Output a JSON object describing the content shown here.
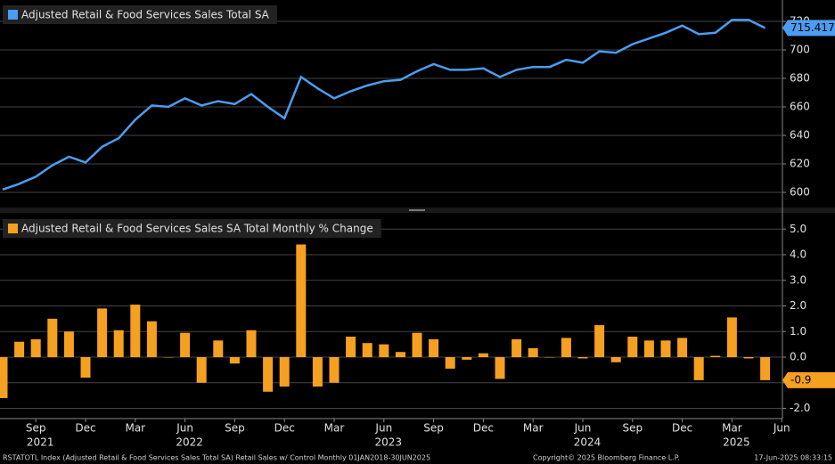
{
  "chart_data": [
    {
      "type": "line",
      "title": "Adjusted Retail & Food Services Sales Total SA",
      "color": "#4a9df0",
      "categories": [
        "2021-07",
        "2021-08",
        "2021-09",
        "2021-10",
        "2021-11",
        "2021-12",
        "2022-01",
        "2022-02",
        "2022-03",
        "2022-04",
        "2022-05",
        "2022-06",
        "2022-07",
        "2022-08",
        "2022-09",
        "2022-10",
        "2022-11",
        "2022-12",
        "2023-01",
        "2023-02",
        "2023-03",
        "2023-04",
        "2023-05",
        "2023-06",
        "2023-07",
        "2023-08",
        "2023-09",
        "2023-10",
        "2023-11",
        "2023-12",
        "2024-01",
        "2024-02",
        "2024-03",
        "2024-04",
        "2024-05",
        "2024-06",
        "2024-07",
        "2024-08",
        "2024-09",
        "2024-10",
        "2024-11",
        "2024-12",
        "2025-01",
        "2025-02",
        "2025-03",
        "2025-04",
        "2025-05"
      ],
      "values": [
        602,
        606,
        611,
        619,
        625,
        621,
        632,
        638,
        651,
        661,
        660,
        666,
        661,
        664,
        662,
        669,
        660,
        652,
        681,
        673,
        666,
        671,
        675,
        678,
        679,
        685,
        690,
        686,
        686,
        687,
        681,
        686,
        688,
        688,
        693,
        691,
        699,
        698,
        704,
        708,
        712,
        717,
        711,
        712,
        721,
        721,
        715.417
      ],
      "ylim": [
        590,
        735
      ],
      "yticks": [
        600,
        620,
        640,
        660,
        680,
        700,
        720
      ],
      "grid": true
    },
    {
      "type": "bar",
      "title": "Adjusted Retail & Food Services Sales SA Total Monthly % Change",
      "color": "#f5a020",
      "categories": [
        "2021-07",
        "2021-08",
        "2021-09",
        "2021-10",
        "2021-11",
        "2021-12",
        "2022-01",
        "2022-02",
        "2022-03",
        "2022-04",
        "2022-05",
        "2022-06",
        "2022-07",
        "2022-08",
        "2022-09",
        "2022-10",
        "2022-11",
        "2022-12",
        "2023-01",
        "2023-02",
        "2023-03",
        "2023-04",
        "2023-05",
        "2023-06",
        "2023-07",
        "2023-08",
        "2023-09",
        "2023-10",
        "2023-11",
        "2023-12",
        "2024-01",
        "2024-02",
        "2024-03",
        "2024-04",
        "2024-05",
        "2024-06",
        "2024-07",
        "2024-08",
        "2024-09",
        "2024-10",
        "2024-11",
        "2024-12",
        "2025-01",
        "2025-02",
        "2025-03",
        "2025-04",
        "2025-05"
      ],
      "values": [
        -1.6,
        0.6,
        0.7,
        1.5,
        1.0,
        -0.8,
        1.9,
        1.05,
        2.05,
        1.4,
        0.0,
        0.95,
        -1.0,
        0.65,
        -0.25,
        1.05,
        -1.35,
        -1.15,
        4.4,
        -1.15,
        -1.0,
        0.8,
        0.55,
        0.5,
        0.2,
        0.95,
        0.7,
        -0.45,
        -0.1,
        0.15,
        -0.85,
        0.7,
        0.35,
        0.0,
        0.75,
        -0.05,
        1.25,
        -0.2,
        0.8,
        0.65,
        0.65,
        0.75,
        -0.9,
        0.05,
        1.55,
        -0.05,
        -0.9
      ],
      "ylim": [
        -2.4,
        5.6
      ],
      "yticks": [
        {
          "value": -2,
          "label": "-2.0"
        },
        {
          "value": -1,
          "label": "-1.0"
        },
        {
          "value": 0,
          "label": "0.0"
        },
        {
          "value": 1,
          "label": "1.0"
        },
        {
          "value": 2,
          "label": "2.0"
        },
        {
          "value": 3,
          "label": "3.0"
        },
        {
          "value": 4,
          "label": "4.0"
        },
        {
          "value": 5,
          "label": "5.0"
        }
      ],
      "grid": true,
      "xticks": [
        {
          "value": "2021-09",
          "label": "Sep"
        },
        {
          "value": "2021-12",
          "label": "Dec"
        },
        {
          "value": "2022-03",
          "label": "Mar"
        },
        {
          "value": "2022-06",
          "label": "Jun"
        },
        {
          "value": "2022-09",
          "label": "Sep"
        },
        {
          "value": "2022-12",
          "label": "Dec"
        },
        {
          "value": "2023-03",
          "label": "Mar"
        },
        {
          "value": "2023-06",
          "label": "Jun"
        },
        {
          "value": "2023-09",
          "label": "Sep"
        },
        {
          "value": "2023-12",
          "label": "Dec"
        },
        {
          "value": "2024-03",
          "label": "Mar"
        },
        {
          "value": "2024-06",
          "label": "Jun"
        },
        {
          "value": "2024-09",
          "label": "Sep"
        },
        {
          "value": "2024-12",
          "label": "Dec"
        },
        {
          "value": "2025-03",
          "label": "Mar"
        },
        {
          "value": "2025-06",
          "label": "Jun"
        }
      ],
      "year_labels": [
        {
          "value": "2021-09",
          "label": "2021"
        },
        {
          "value": "2022-06",
          "label": "2022"
        },
        {
          "value": "2023-06",
          "label": "2023"
        },
        {
          "value": "2024-06",
          "label": "2024"
        },
        {
          "value": "2025-03",
          "label": "2025"
        }
      ]
    }
  ],
  "footer": {
    "source": "RSTATOTL Index (Adjusted Retail & Food Services Sales Total SA) Retail Sales w/ Control  Monthly 01JAN2018-30JUN2025",
    "copyright": "Copyright© 2025 Bloomberg Finance L.P.",
    "timestamp": "17-Jun-2025 08:33:15"
  }
}
